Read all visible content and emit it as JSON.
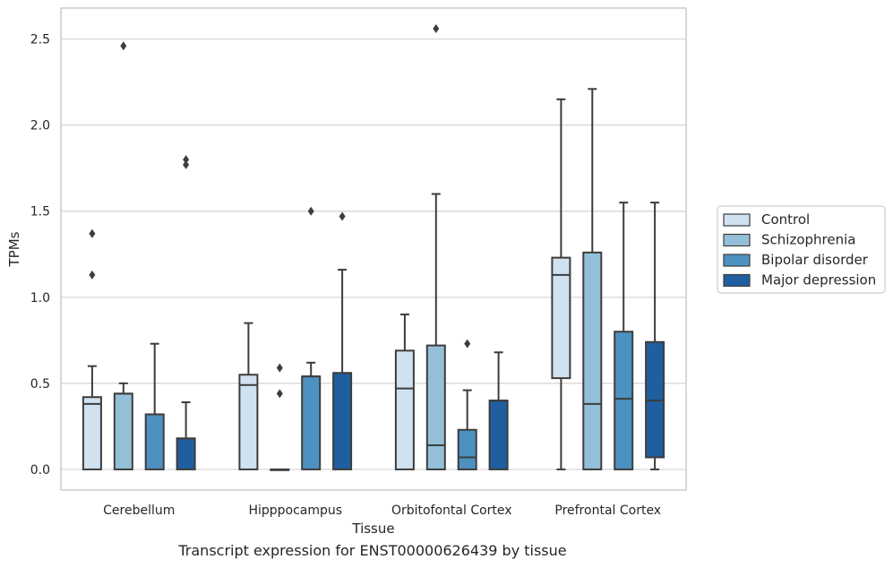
{
  "chart_data": {
    "type": "box",
    "xlabel": "Tissue",
    "ylabel": "TPMs",
    "caption": "Transcript expression for ENST00000626439 by tissue",
    "ylim": [
      -0.12,
      2.68
    ],
    "y_ticks": [
      "0.0",
      "0.5",
      "1.0",
      "1.5",
      "2.0",
      "2.5"
    ],
    "y_tick_values": [
      0,
      0.5,
      1.0,
      1.5,
      2.0,
      2.5
    ],
    "categories": [
      "Cerebellum",
      "Hipppocampus",
      "Orbitofontal Cortex",
      "Prefrontal Cortex"
    ],
    "grid": "horizontal",
    "legend_placement": "right",
    "series": [
      {
        "name": "Control",
        "color": "#d0e1f0",
        "boxes": [
          {
            "whislo": 0.0,
            "q1": 0.0,
            "med": 0.38,
            "q3": 0.42,
            "whishi": 0.6,
            "fliers": [
              1.37,
              1.13
            ]
          },
          {
            "whislo": 0.0,
            "q1": 0.0,
            "med": 0.49,
            "q3": 0.55,
            "whishi": 0.85,
            "fliers": []
          },
          {
            "whislo": 0.0,
            "q1": 0.0,
            "med": 0.47,
            "q3": 0.69,
            "whishi": 0.9,
            "fliers": []
          },
          {
            "whislo": 0.0,
            "q1": 0.53,
            "med": 1.13,
            "q3": 1.23,
            "whishi": 2.15,
            "fliers": []
          }
        ]
      },
      {
        "name": "Schizophrenia",
        "color": "#94bfd8",
        "boxes": [
          {
            "whislo": 0.0,
            "q1": 0.0,
            "med": 0.44,
            "q3": 0.44,
            "whishi": 0.5,
            "fliers": [
              2.46
            ]
          },
          {
            "whislo": 0.0,
            "q1": 0.0,
            "med": 0.0,
            "q3": 0.0,
            "whishi": 0.0,
            "fliers": [
              0.59,
              0.44
            ]
          },
          {
            "whislo": 0.0,
            "q1": 0.0,
            "med": 0.14,
            "q3": 0.72,
            "whishi": 1.6,
            "fliers": [
              2.56
            ]
          },
          {
            "whislo": 0.0,
            "q1": 0.0,
            "med": 0.38,
            "q3": 1.26,
            "whishi": 2.21,
            "fliers": []
          }
        ]
      },
      {
        "name": "Bipolar disorder",
        "color": "#4d91c1",
        "boxes": [
          {
            "whislo": 0.0,
            "q1": 0.0,
            "med": 0.32,
            "q3": 0.32,
            "whishi": 0.73,
            "fliers": []
          },
          {
            "whislo": 0.0,
            "q1": 0.0,
            "med": 0.54,
            "q3": 0.54,
            "whishi": 0.62,
            "fliers": [
              1.5
            ]
          },
          {
            "whislo": 0.0,
            "q1": 0.0,
            "med": 0.07,
            "q3": 0.23,
            "whishi": 0.46,
            "fliers": [
              0.73
            ]
          },
          {
            "whislo": 0.0,
            "q1": 0.0,
            "med": 0.41,
            "q3": 0.8,
            "whishi": 1.55,
            "fliers": []
          }
        ]
      },
      {
        "name": "Major depression",
        "color": "#1f5fa0",
        "boxes": [
          {
            "whislo": 0.0,
            "q1": 0.0,
            "med": 0.18,
            "q3": 0.18,
            "whishi": 0.39,
            "fliers": [
              1.8,
              1.77
            ]
          },
          {
            "whislo": 0.0,
            "q1": 0.0,
            "med": 0.56,
            "q3": 0.56,
            "whishi": 1.16,
            "fliers": [
              1.47
            ]
          },
          {
            "whislo": 0.0,
            "q1": 0.0,
            "med": 0.4,
            "q3": 0.4,
            "whishi": 0.68,
            "fliers": []
          },
          {
            "whislo": 0.0,
            "q1": 0.07,
            "med": 0.4,
            "q3": 0.74,
            "whishi": 1.55,
            "fliers": []
          }
        ]
      }
    ]
  }
}
